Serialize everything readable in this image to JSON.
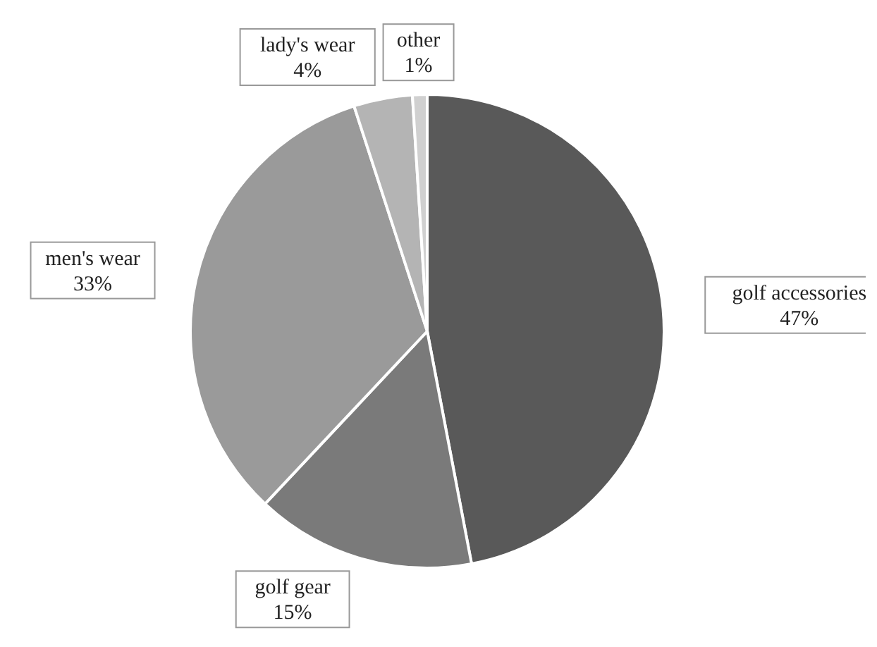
{
  "chart_data": {
    "type": "pie",
    "categories": [
      "golf accessories",
      "golf gear",
      "men's wear",
      "lady's wear",
      "other"
    ],
    "values": [
      47,
      15,
      33,
      4,
      1
    ],
    "value_labels": [
      "47%",
      "15%",
      "33%",
      "4%",
      "1%"
    ],
    "colors": [
      "#595959",
      "#7a7a7a",
      "#9a9a9a",
      "#b4b4b4",
      "#d0d0d0"
    ]
  }
}
